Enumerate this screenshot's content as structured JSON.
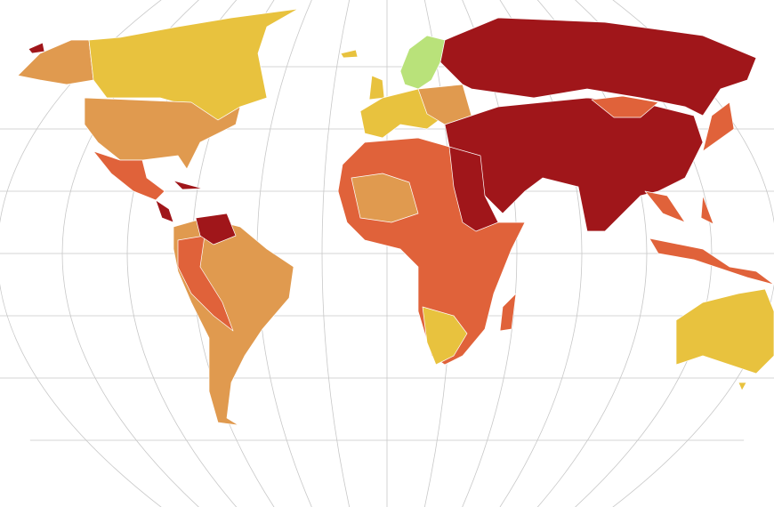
{
  "map": {
    "palette": {
      "darkred": "#a0161a",
      "red": "#e0623a",
      "orange": "#e09a4f",
      "yellow": "#e8c23e",
      "green": "#b9e27a"
    }
  }
}
